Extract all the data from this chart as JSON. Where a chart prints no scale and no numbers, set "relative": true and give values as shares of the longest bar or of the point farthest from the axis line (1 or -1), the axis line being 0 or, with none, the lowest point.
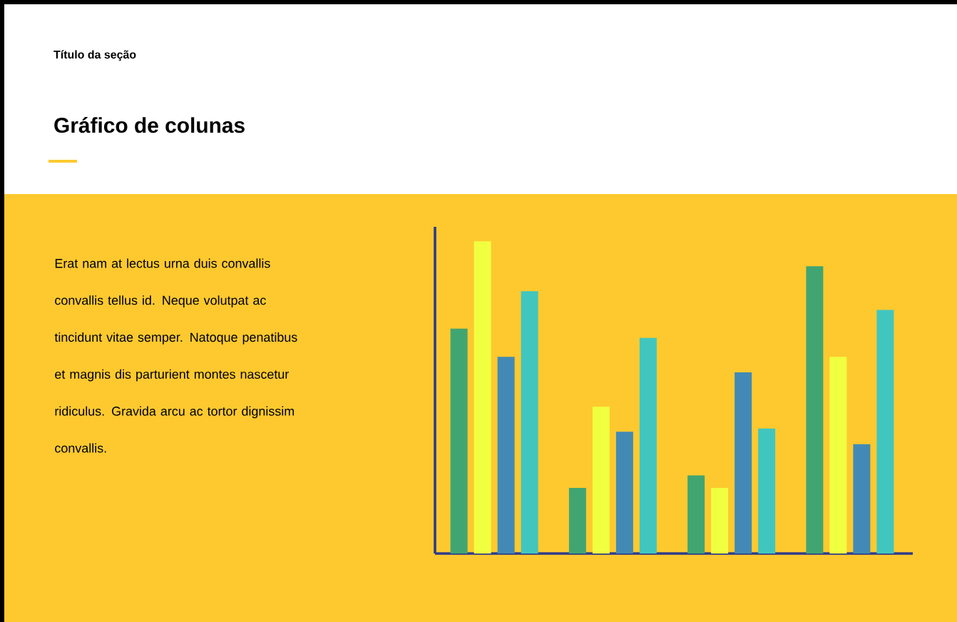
{
  "chart_data": {
    "type": "bar",
    "subtitle": "Título da seção",
    "title": "Gráfico de colunas",
    "annotations": [
      "Erat nam at lectus urna duis convallis convallis tellus id. Neque volutpat ac tincidunt vitae semper. Natoque penatibus et magnis dis parturient montes nascetur ridiculus. Gravida arcu ac tortor dignissim convallis."
    ],
    "categories": [
      null,
      null,
      null,
      null
    ],
    "relative": true,
    "series": [
      {
        "color": "#41a572",
        "values": [
          0.72,
          0.21,
          0.25,
          0.92
        ]
      },
      {
        "color": "#f0ff3f",
        "values": [
          1,
          0.47,
          0.21,
          0.63
        ]
      },
      {
        "color": "#428ab5",
        "values": [
          0.63,
          0.39,
          0.58,
          0.35
        ]
      },
      {
        "color": "#41c6bf",
        "values": [
          0.84,
          0.69,
          0.4,
          0.78
        ]
      }
    ]
  }
}
